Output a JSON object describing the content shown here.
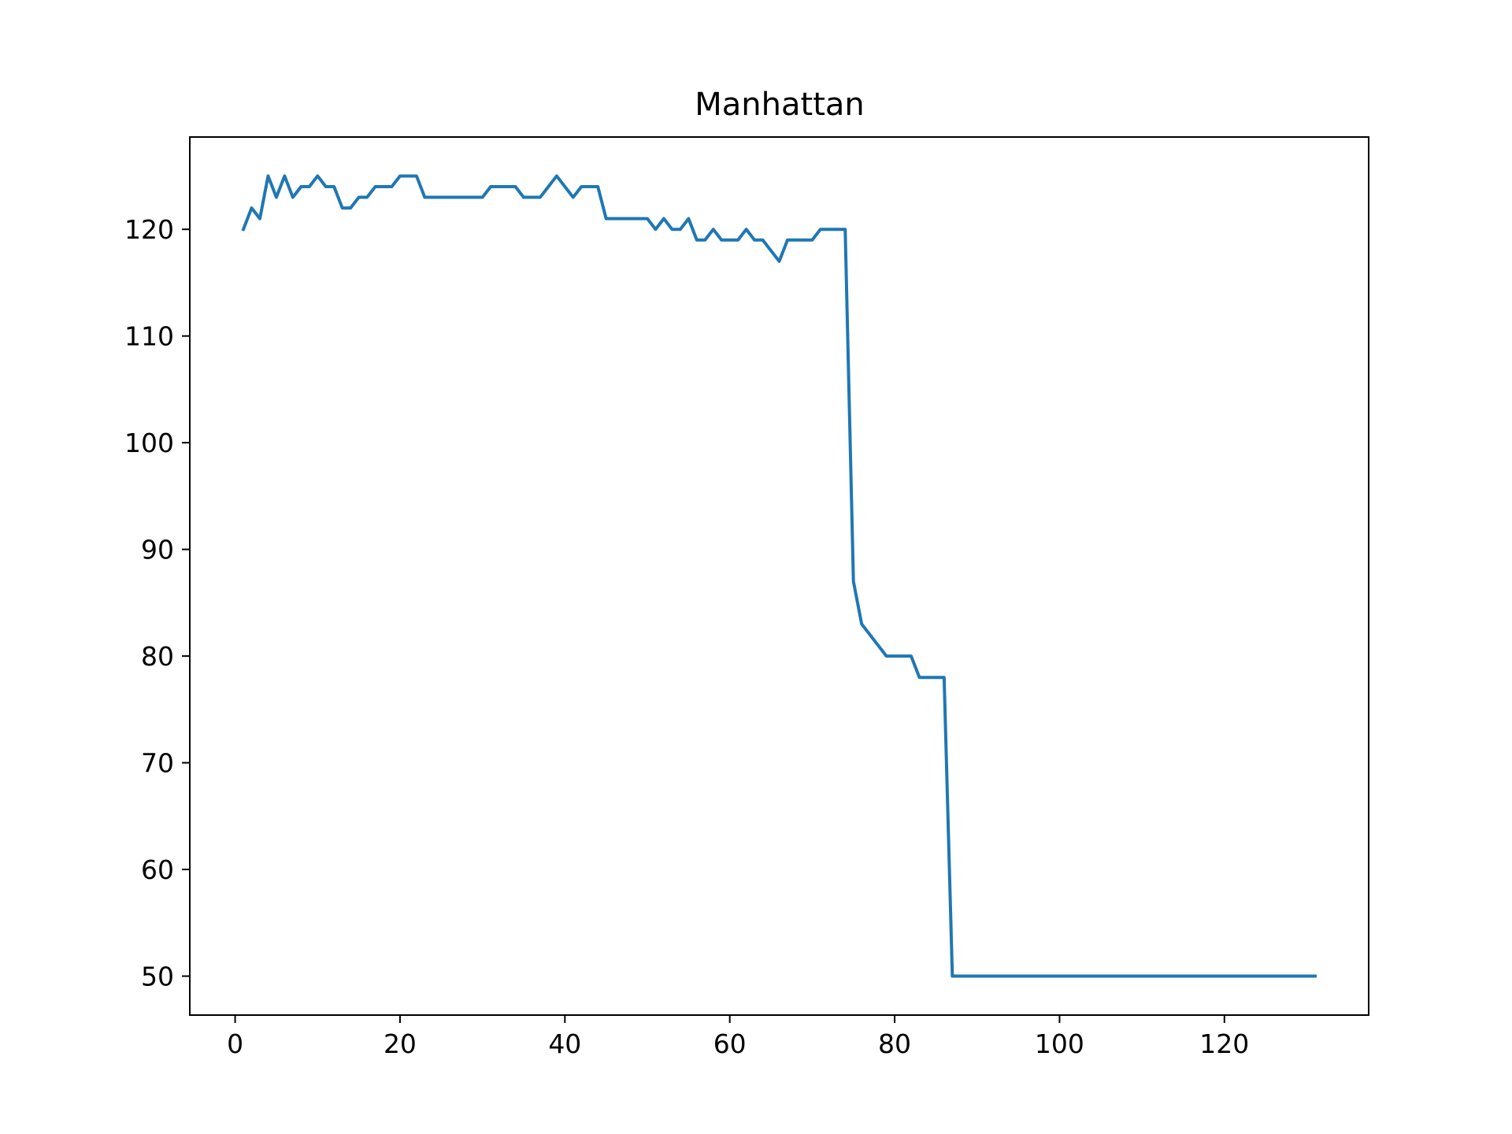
{
  "chart_data": {
    "type": "line",
    "title": "Manhattan",
    "xlabel": "",
    "ylabel": "",
    "xlim": [
      -5.5,
      137.5
    ],
    "ylim": [
      46.35,
      128.65
    ],
    "xticks": [
      0,
      20,
      40,
      60,
      80,
      100,
      120
    ],
    "yticks": [
      50,
      60,
      70,
      80,
      90,
      100,
      110,
      120
    ],
    "grid": false,
    "legend": null,
    "series": [
      {
        "color": "#1f77b4",
        "x": [
          1,
          2,
          3,
          4,
          5,
          6,
          7,
          8,
          9,
          10,
          11,
          12,
          13,
          14,
          15,
          16,
          17,
          18,
          19,
          20,
          21,
          22,
          23,
          24,
          25,
          26,
          27,
          28,
          29,
          30,
          31,
          32,
          33,
          34,
          35,
          36,
          37,
          38,
          39,
          40,
          41,
          42,
          43,
          44,
          45,
          46,
          47,
          48,
          49,
          50,
          51,
          52,
          53,
          54,
          55,
          56,
          57,
          58,
          59,
          60,
          61,
          62,
          63,
          64,
          65,
          66,
          67,
          68,
          69,
          70,
          71,
          72,
          73,
          74,
          75,
          76,
          77,
          78,
          79,
          80,
          81,
          82,
          83,
          84,
          85,
          86,
          87,
          131
        ],
        "y": [
          120,
          122,
          121,
          125,
          123,
          125,
          123,
          124,
          124,
          125,
          124,
          124,
          122,
          122,
          123,
          123,
          124,
          124,
          124,
          125,
          125,
          125,
          123,
          123,
          123,
          123,
          123,
          123,
          123,
          123,
          124,
          124,
          124,
          124,
          123,
          123,
          123,
          124,
          125,
          124,
          123,
          124,
          124,
          124,
          121,
          121,
          121,
          121,
          121,
          121,
          120,
          121,
          120,
          120,
          121,
          119,
          119,
          120,
          119,
          119,
          119,
          120,
          119,
          119,
          118,
          117,
          119,
          119,
          119,
          119,
          120,
          120,
          120,
          120,
          87,
          83,
          82,
          81,
          80,
          80,
          80,
          80,
          78,
          78,
          78,
          78,
          50,
          50
        ]
      }
    ]
  }
}
